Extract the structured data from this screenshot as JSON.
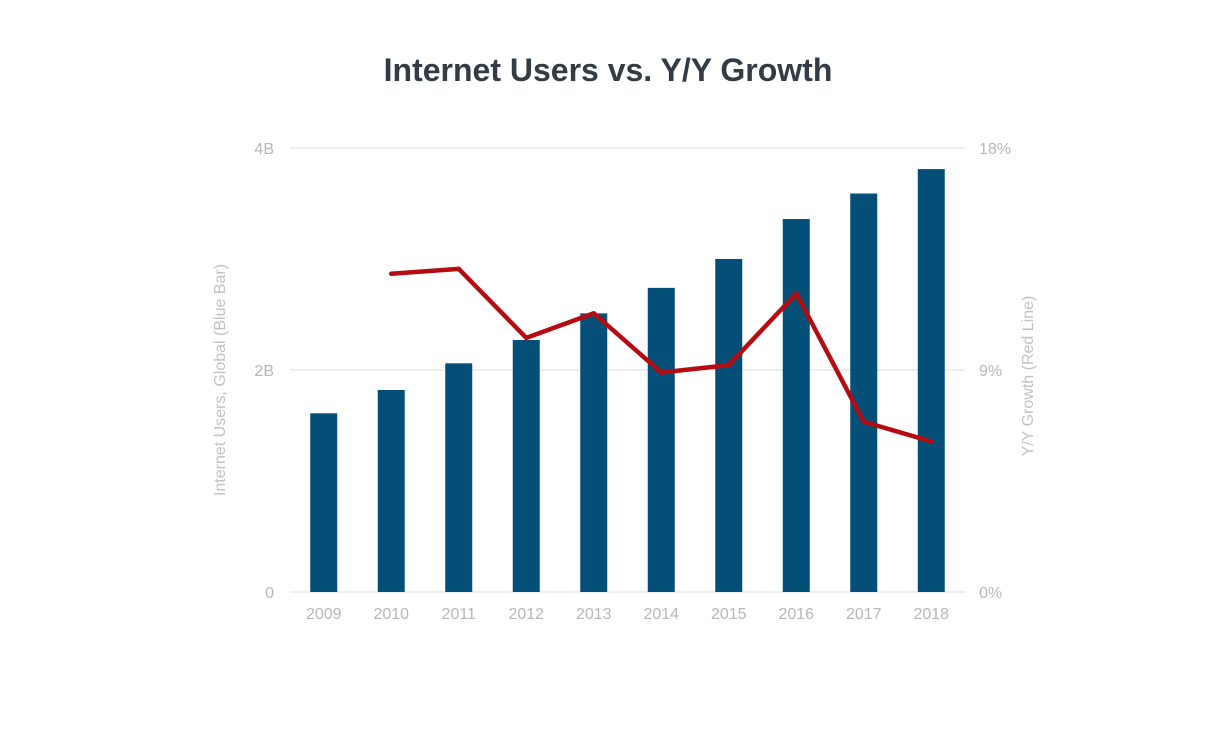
{
  "chart_data": {
    "type": "bar",
    "title": "Internet Users vs. Y/Y Growth",
    "categories": [
      "2009",
      "2010",
      "2011",
      "2012",
      "2013",
      "2014",
      "2015",
      "2016",
      "2017",
      "2018"
    ],
    "series": [
      {
        "kind": "bar",
        "axis": "left",
        "values": [
          1.61,
          1.82,
          2.06,
          2.27,
          2.51,
          2.74,
          3.0,
          3.36,
          3.59,
          3.81
        ]
      },
      {
        "kind": "line",
        "axis": "right",
        "values": [
          null,
          12.9,
          13.1,
          10.3,
          11.3,
          8.9,
          9.2,
          12.1,
          6.9,
          6.1
        ]
      }
    ],
    "ylabel": "Internet Users, Global (Blue Bar)",
    "ylabel_right": "Y/Y Growth (Red Line)",
    "ylim": [
      0,
      4
    ],
    "ylim_right": [
      0,
      18
    ],
    "yticks": [
      {
        "value": 0,
        "label": "0"
      },
      {
        "value": 2,
        "label": "2B"
      },
      {
        "value": 4,
        "label": "4B"
      }
    ],
    "yticks_right": [
      {
        "value": 0,
        "label": "0%"
      },
      {
        "value": 9,
        "label": "9%"
      },
      {
        "value": 18,
        "label": "18%"
      }
    ],
    "grid": true,
    "legend": "none",
    "colors": {
      "bar": "#034f77",
      "line": "#b50c12",
      "grid": "#dddddd",
      "tick": "#b7b7b7"
    }
  }
}
